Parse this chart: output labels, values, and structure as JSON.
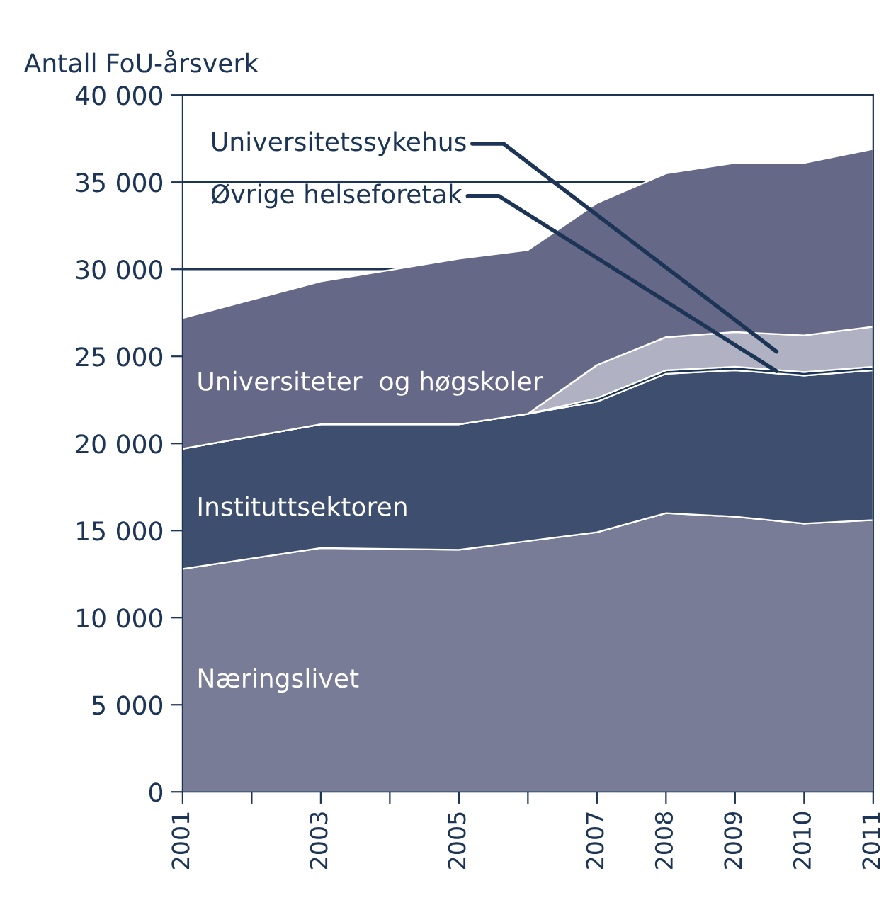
{
  "chart_data": {
    "type": "area",
    "stacked": true,
    "ylabel": "Antall FoU-årsverk",
    "x": [
      2001,
      2003,
      2005,
      2006,
      2007,
      2008,
      2009,
      2010,
      2011
    ],
    "series": [
      {
        "name": "Næringslivet",
        "color": "#797c96",
        "values": [
          12800,
          14000,
          13900,
          14400,
          14900,
          16000,
          15800,
          15400,
          15600
        ]
      },
      {
        "name": "Instituttsektoren",
        "color": "#3e4e6e",
        "values": [
          6900,
          7100,
          7200,
          7300,
          7500,
          8000,
          8400,
          8500,
          8600
        ]
      },
      {
        "name": "Øvrige helseforetak",
        "color": "#1c3557",
        "values": [
          0,
          0,
          0,
          0,
          200,
          200,
          200,
          200,
          200
        ]
      },
      {
        "name": "Universitetssykehus",
        "color": "#b0b1c2",
        "values": [
          0,
          0,
          0,
          0,
          1900,
          1900,
          2000,
          2100,
          2300
        ]
      },
      {
        "name": "Universiteter  og høgskoler",
        "color": "#666887",
        "values": [
          7500,
          8200,
          9500,
          9400,
          9300,
          9400,
          9700,
          9900,
          10200
        ]
      }
    ],
    "xlim": [
      2001,
      2011
    ],
    "xticks": [
      2001,
      {
        "value": 2002,
        "label": null
      },
      2003,
      {
        "value": 2004,
        "label": null
      },
      2005,
      {
        "value": 2006,
        "label": null
      },
      2007,
      2008,
      2009,
      2010,
      2011
    ],
    "ylim": [
      0,
      40000
    ],
    "yticks": [
      {
        "value": 0,
        "label": "0"
      },
      {
        "value": 5000,
        "label": "5 000"
      },
      {
        "value": 10000,
        "label": "10 000"
      },
      {
        "value": 15000,
        "label": "15 000"
      },
      {
        "value": 20000,
        "label": "20 000"
      },
      {
        "value": 25000,
        "label": "25 000"
      },
      {
        "value": 30000,
        "label": "30 000"
      },
      {
        "value": 35000,
        "label": "35 000"
      },
      {
        "value": 40000,
        "label": "40 000"
      }
    ],
    "grid": "y",
    "legend": false
  }
}
